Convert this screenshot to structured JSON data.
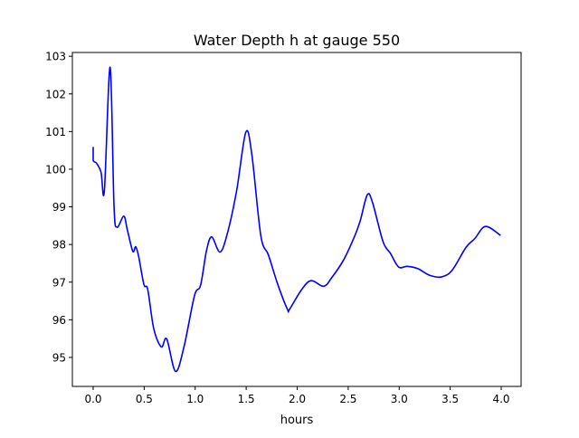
{
  "chart_data": {
    "type": "line",
    "title": "Water Depth h at gauge 550",
    "xlabel": "hours",
    "ylabel": "",
    "xlim": [
      -0.204,
      4.195
    ],
    "ylim": [
      94.23,
      103.1
    ],
    "xticks": [
      0.0,
      0.5,
      1.0,
      1.5,
      2.0,
      2.5,
      3.0,
      3.5,
      4.0
    ],
    "xtick_labels": [
      "0.0",
      "0.5",
      "1.0",
      "1.5",
      "2.0",
      "2.5",
      "3.0",
      "3.5",
      "4.0"
    ],
    "yticks": [
      95,
      96,
      97,
      98,
      99,
      100,
      101,
      102,
      103
    ],
    "ytick_labels": [
      "95",
      "96",
      "97",
      "98",
      "99",
      "100",
      "101",
      "102",
      "103"
    ],
    "grid": false,
    "series": [
      {
        "name": "h",
        "color": "#0000ff",
        "x": [
          0,
          0,
          0.033,
          0.077,
          0.11,
          0.166,
          0.204,
          0.233,
          0.3,
          0.334,
          0.388,
          0.417,
          0.446,
          0.497,
          0.535,
          0.594,
          0.668,
          0.721,
          0.807,
          0.89,
          0.993,
          1.053,
          1.111,
          1.162,
          1.244,
          1.318,
          1.407,
          1.496,
          1.555,
          1.643,
          1.718,
          1.807,
          1.904,
          1.925,
          2.043,
          2.137,
          2.259,
          2.339,
          2.457,
          2.56,
          2.619,
          2.687,
          2.738,
          2.841,
          2.915,
          2.995,
          3.078,
          3.181,
          3.3,
          3.417,
          3.52,
          3.654,
          3.742,
          3.846,
          3.994
        ],
        "y": [
          100.59,
          100.24,
          100.16,
          99.92,
          99.44,
          102.71,
          99.04,
          98.46,
          98.75,
          98.4,
          97.82,
          97.94,
          97.68,
          96.94,
          96.8,
          95.76,
          95.28,
          95.49,
          94.63,
          95.28,
          96.64,
          96.92,
          97.84,
          98.2,
          97.8,
          98.32,
          99.44,
          100.98,
          100.4,
          98.24,
          97.72,
          96.96,
          96.28,
          96.28,
          96.8,
          97.04,
          96.89,
          97.12,
          97.6,
          98.2,
          98.64,
          99.32,
          99.12,
          98.08,
          97.76,
          97.4,
          97.42,
          97.36,
          97.18,
          97.14,
          97.32,
          97.92,
          98.16,
          98.48,
          98.24
        ]
      }
    ]
  }
}
